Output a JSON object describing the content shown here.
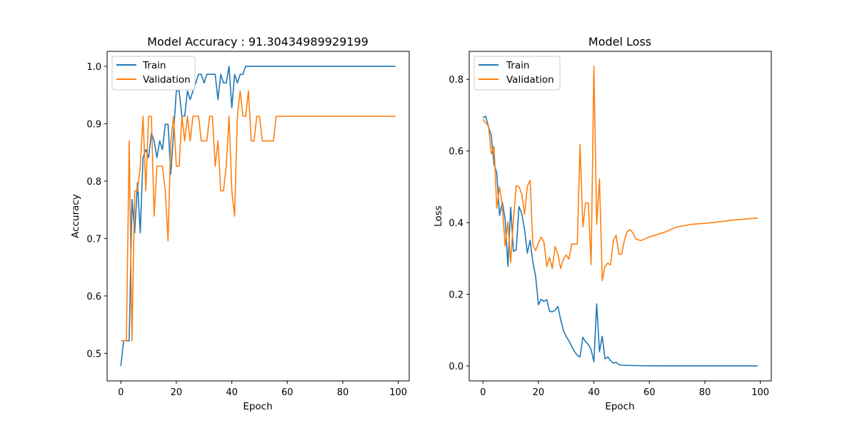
{
  "chart_data": [
    {
      "type": "line",
      "title": "Model Accuracy : 91.30434989929199",
      "xlabel": "Epoch",
      "ylabel": "Accuracy",
      "xlim": [
        -4.95,
        103.95
      ],
      "ylim": [
        0.452,
        1.026
      ],
      "xticks": [
        0,
        20,
        40,
        60,
        80,
        100
      ],
      "yticks": [
        0.5,
        0.6,
        0.7,
        0.8,
        0.9,
        1.0
      ],
      "ytick_format": 1,
      "legend": "upper left",
      "series": [
        {
          "name": "Train",
          "color": "#1f77b4",
          "x": [
            0,
            1,
            2,
            3,
            4,
            5,
            6,
            7,
            8,
            9,
            10,
            11,
            12,
            13,
            14,
            15,
            16,
            17,
            18,
            19,
            20,
            21,
            22,
            23,
            24,
            25,
            26,
            27,
            28,
            29,
            30,
            31,
            32,
            33,
            34,
            35,
            36,
            37,
            38,
            39,
            40,
            41,
            42,
            43,
            44,
            45,
            46,
            47,
            48,
            49,
            50,
            55,
            60,
            70,
            80,
            90,
            99
          ],
          "y": [
            0.478,
            0.522,
            0.522,
            0.522,
            0.768,
            0.71,
            0.797,
            0.71,
            0.841,
            0.855,
            0.841,
            0.884,
            0.87,
            0.841,
            0.87,
            0.855,
            0.899,
            0.899,
            0.812,
            0.884,
            0.957,
            0.957,
            0.913,
            0.913,
            0.957,
            0.942,
            0.957,
            0.971,
            0.986,
            0.986,
            0.971,
            0.986,
            0.986,
            0.986,
            0.986,
            0.942,
            0.986,
            0.971,
            0.971,
            1.0,
            0.928,
            0.986,
            0.971,
            0.986,
            0.986,
            1.0,
            1.0,
            1.0,
            1.0,
            1.0,
            1.0,
            1.0,
            1.0,
            1.0,
            1.0,
            1.0,
            1.0
          ]
        },
        {
          "name": "Validation",
          "color": "#ff7f0e",
          "x": [
            0,
            1,
            2,
            3,
            4,
            5,
            6,
            7,
            8,
            9,
            10,
            11,
            12,
            13,
            14,
            15,
            16,
            17,
            18,
            19,
            20,
            21,
            22,
            23,
            24,
            25,
            26,
            27,
            28,
            29,
            30,
            31,
            32,
            33,
            34,
            35,
            36,
            37,
            38,
            39,
            40,
            41,
            42,
            43,
            44,
            45,
            46,
            47,
            48,
            49,
            50,
            51,
            52,
            53,
            54,
            55,
            56,
            60,
            70,
            80,
            90,
            99
          ],
          "y": [
            0.522,
            0.522,
            0.522,
            0.87,
            0.522,
            0.783,
            0.783,
            0.826,
            0.913,
            0.783,
            0.913,
            0.913,
            0.739,
            0.826,
            0.826,
            0.826,
            0.783,
            0.696,
            0.87,
            0.913,
            0.826,
            0.826,
            0.913,
            0.87,
            0.913,
            0.87,
            0.913,
            0.913,
            0.913,
            0.87,
            0.87,
            0.87,
            0.913,
            0.913,
            0.826,
            0.87,
            0.783,
            0.783,
            0.826,
            0.913,
            0.783,
            0.739,
            0.913,
            0.957,
            0.913,
            0.913,
            0.957,
            0.87,
            0.87,
            0.913,
            0.913,
            0.87,
            0.87,
            0.87,
            0.87,
            0.87,
            0.913,
            0.913,
            0.913,
            0.913,
            0.913,
            0.913
          ]
        }
      ]
    },
    {
      "type": "line",
      "title": "Model Loss",
      "xlabel": "Epoch",
      "ylabel": "Loss",
      "xlim": [
        -4.95,
        103.95
      ],
      "ylim": [
        -0.0418,
        0.878
      ],
      "xticks": [
        0,
        20,
        40,
        60,
        80,
        100
      ],
      "yticks": [
        0.0,
        0.2,
        0.4,
        0.6,
        0.8
      ],
      "ytick_format": 1,
      "legend": "upper left",
      "series": [
        {
          "name": "Train",
          "color": "#1f77b4",
          "x": [
            0,
            1,
            2,
            3,
            4,
            5,
            6,
            7,
            8,
            9,
            10,
            11,
            12,
            13,
            14,
            15,
            16,
            17,
            18,
            19,
            20,
            21,
            22,
            23,
            24,
            25,
            26,
            27,
            28,
            29,
            30,
            31,
            32,
            33,
            34,
            35,
            36,
            37,
            38,
            39,
            40,
            41,
            42,
            43,
            44,
            45,
            46,
            47,
            48,
            49,
            50,
            55,
            60,
            70,
            80,
            90,
            99
          ],
          "y": [
            0.693,
            0.697,
            0.667,
            0.643,
            0.562,
            0.539,
            0.42,
            0.457,
            0.41,
            0.278,
            0.443,
            0.32,
            0.324,
            0.445,
            0.425,
            0.381,
            0.315,
            0.351,
            0.29,
            0.25,
            0.171,
            0.186,
            0.18,
            0.185,
            0.153,
            0.151,
            0.155,
            0.166,
            0.13,
            0.099,
            0.082,
            0.07,
            0.055,
            0.04,
            0.03,
            0.025,
            0.08,
            0.068,
            0.06,
            0.045,
            0.012,
            0.173,
            0.04,
            0.083,
            0.02,
            0.025,
            0.015,
            0.008,
            0.01,
            0.004,
            0.002,
            0.001,
            0.0005,
            0.0003,
            0.0002,
            0.0002,
            0.0002
          ]
        },
        {
          "name": "Validation",
          "color": "#ff7f0e",
          "x": [
            0,
            1,
            2,
            3,
            4,
            5,
            6,
            7,
            8,
            9,
            10,
            11,
            12,
            13,
            14,
            15,
            16,
            17,
            18,
            19,
            20,
            21,
            22,
            23,
            24,
            25,
            26,
            27,
            28,
            29,
            30,
            31,
            32,
            33,
            34,
            35,
            36,
            37,
            38,
            39,
            40,
            41,
            42,
            43,
            44,
            45,
            46,
            47,
            48,
            49,
            50,
            51,
            52,
            53,
            54,
            55,
            56,
            57,
            60,
            65,
            70,
            75,
            80,
            85,
            90,
            95,
            99
          ],
          "y": [
            0.688,
            0.678,
            0.67,
            0.592,
            0.613,
            0.44,
            0.5,
            0.445,
            0.335,
            0.402,
            0.288,
            0.41,
            0.503,
            0.5,
            0.48,
            0.423,
            0.502,
            0.518,
            0.338,
            0.322,
            0.343,
            0.36,
            0.345,
            0.278,
            0.303,
            0.272,
            0.333,
            0.312,
            0.272,
            0.298,
            0.31,
            0.298,
            0.34,
            0.34,
            0.34,
            0.618,
            0.388,
            0.455,
            0.455,
            0.283,
            0.837,
            0.395,
            0.522,
            0.238,
            0.278,
            0.287,
            0.282,
            0.35,
            0.365,
            0.312,
            0.312,
            0.35,
            0.375,
            0.38,
            0.372,
            0.355,
            0.352,
            0.35,
            0.36,
            0.372,
            0.388,
            0.395,
            0.398,
            0.402,
            0.407,
            0.41,
            0.413
          ]
        }
      ]
    }
  ]
}
